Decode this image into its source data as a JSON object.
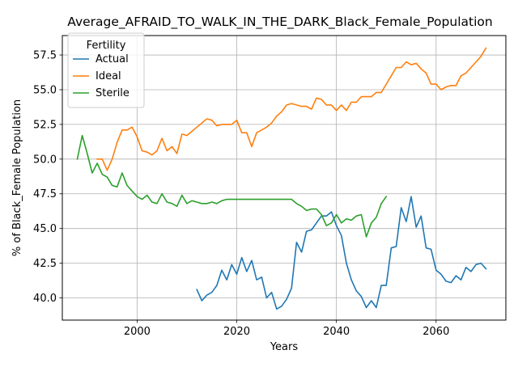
{
  "chart_data": {
    "type": "line",
    "title": "Average_AFRAID_TO_WALK_IN_THE_DARK_Black_Female_Population",
    "xlabel": "Years",
    "ylabel": "% of Black_Female Population",
    "xlim": [
      1985,
      2074
    ],
    "ylim": [
      38.4,
      58.9
    ],
    "xticks": [
      2000,
      2020,
      2040,
      2060
    ],
    "yticks": [
      40.0,
      42.5,
      45.0,
      47.5,
      50.0,
      52.5,
      55.0,
      57.5
    ],
    "xtick_labels": [
      "2000",
      "2020",
      "2040",
      "2060"
    ],
    "ytick_labels": [
      "40.0",
      "42.5",
      "45.0",
      "47.5",
      "50.0",
      "52.5",
      "55.0",
      "57.5"
    ],
    "grid": true,
    "legend": {
      "title": "Fertility",
      "position": "top-left"
    },
    "series": [
      {
        "name": "Actual",
        "color": "#1f77b4",
        "x": [
          2012,
          2013,
          2014,
          2015,
          2016,
          2017,
          2018,
          2019,
          2020,
          2021,
          2022,
          2023,
          2024,
          2025,
          2026,
          2027,
          2028,
          2029,
          2030,
          2031,
          2032,
          2033,
          2034,
          2035,
          2036,
          2037,
          2038,
          2039,
          2040,
          2041,
          2042,
          2043,
          2044,
          2045,
          2046,
          2047,
          2048,
          2049,
          2050,
          2051,
          2052,
          2053,
          2054,
          2055,
          2056,
          2057,
          2058,
          2059,
          2060,
          2061,
          2062,
          2063,
          2064,
          2065,
          2066,
          2067,
          2068,
          2069,
          2070
        ],
        "values": [
          40.6,
          39.8,
          40.2,
          40.4,
          40.9,
          42.0,
          41.3,
          42.4,
          41.7,
          42.9,
          41.9,
          42.7,
          41.3,
          41.5,
          40.0,
          40.4,
          39.2,
          39.4,
          39.9,
          40.7,
          44.0,
          43.3,
          44.8,
          44.9,
          45.4,
          45.9,
          45.9,
          46.2,
          45.2,
          44.5,
          42.5,
          41.3,
          40.5,
          40.1,
          39.3,
          39.8,
          39.3,
          40.9,
          40.9,
          43.6,
          43.7,
          46.5,
          45.5,
          47.3,
          45.1,
          45.9,
          43.6,
          43.5,
          42.0,
          41.7,
          41.2,
          41.1,
          41.6,
          41.3,
          42.2,
          41.9,
          42.4,
          42.5,
          42.1
        ]
      },
      {
        "name": "Ideal",
        "color": "#ff7f0e",
        "x": [
          1992,
          1993,
          1994,
          1995,
          1996,
          1997,
          1998,
          1999,
          2000,
          2001,
          2002,
          2003,
          2004,
          2005,
          2006,
          2007,
          2008,
          2009,
          2010,
          2011,
          2012,
          2013,
          2014,
          2015,
          2016,
          2017,
          2018,
          2019,
          2020,
          2021,
          2022,
          2023,
          2024,
          2025,
          2026,
          2027,
          2028,
          2029,
          2030,
          2031,
          2032,
          2033,
          2034,
          2035,
          2036,
          2037,
          2038,
          2039,
          2040,
          2041,
          2042,
          2043,
          2044,
          2045,
          2046,
          2047,
          2048,
          2049,
          2050,
          2051,
          2052,
          2053,
          2054,
          2055,
          2056,
          2057,
          2058,
          2059,
          2060,
          2061,
          2062,
          2063,
          2064,
          2065,
          2066,
          2067,
          2068,
          2069,
          2070
        ],
        "values": [
          50.0,
          50.0,
          49.2,
          50.0,
          51.2,
          52.1,
          52.1,
          52.3,
          51.6,
          50.6,
          50.5,
          50.3,
          50.6,
          51.5,
          50.6,
          50.9,
          50.4,
          51.8,
          51.7,
          52.0,
          52.3,
          52.6,
          52.9,
          52.8,
          52.4,
          52.5,
          52.5,
          52.5,
          52.8,
          51.9,
          51.9,
          50.9,
          51.9,
          52.1,
          52.3,
          52.6,
          53.1,
          53.4,
          53.9,
          54.0,
          53.9,
          53.8,
          53.8,
          53.6,
          54.4,
          54.3,
          53.9,
          53.9,
          53.5,
          53.9,
          53.5,
          54.1,
          54.1,
          54.5,
          54.5,
          54.5,
          54.8,
          54.8,
          55.4,
          56.0,
          56.6,
          56.6,
          57.0,
          56.8,
          56.9,
          56.5,
          56.2,
          55.4,
          55.4,
          55.0,
          55.2,
          55.3,
          55.3,
          56.0,
          56.2,
          56.6,
          57.0,
          57.4,
          58.0
        ]
      },
      {
        "name": "Sterile",
        "color": "#2ca02c",
        "x": [
          1988,
          1989,
          1990,
          1991,
          1992,
          1993,
          1994,
          1995,
          1996,
          1997,
          1998,
          1999,
          2000,
          2001,
          2002,
          2003,
          2004,
          2005,
          2006,
          2007,
          2008,
          2009,
          2010,
          2011,
          2012,
          2013,
          2014,
          2015,
          2016,
          2017,
          2018,
          2019,
          2020,
          2021,
          2022,
          2023,
          2024,
          2025,
          2026,
          2027,
          2028,
          2029,
          2030,
          2031,
          2032,
          2033,
          2034,
          2035,
          2036,
          2037,
          2038,
          2039,
          2040,
          2041,
          2042,
          2043,
          2044,
          2045,
          2046,
          2047,
          2048,
          2049,
          2050
        ],
        "values": [
          50.0,
          51.7,
          50.4,
          49.0,
          49.7,
          48.9,
          48.7,
          48.1,
          48.0,
          49.0,
          48.1,
          47.7,
          47.3,
          47.1,
          47.4,
          46.9,
          46.8,
          47.5,
          46.9,
          46.8,
          46.6,
          47.4,
          46.8,
          47.0,
          46.9,
          46.8,
          46.8,
          46.9,
          46.8,
          47.0,
          47.1,
          47.1,
          47.1,
          47.1,
          47.1,
          47.1,
          47.1,
          47.1,
          47.1,
          47.1,
          47.1,
          47.1,
          47.1,
          47.1,
          46.8,
          46.6,
          46.3,
          46.4,
          46.4,
          46.0,
          45.2,
          45.4,
          46.0,
          45.4,
          45.7,
          45.6,
          45.9,
          46.0,
          44.4,
          45.4,
          45.8,
          46.8,
          47.3
        ]
      }
    ]
  }
}
